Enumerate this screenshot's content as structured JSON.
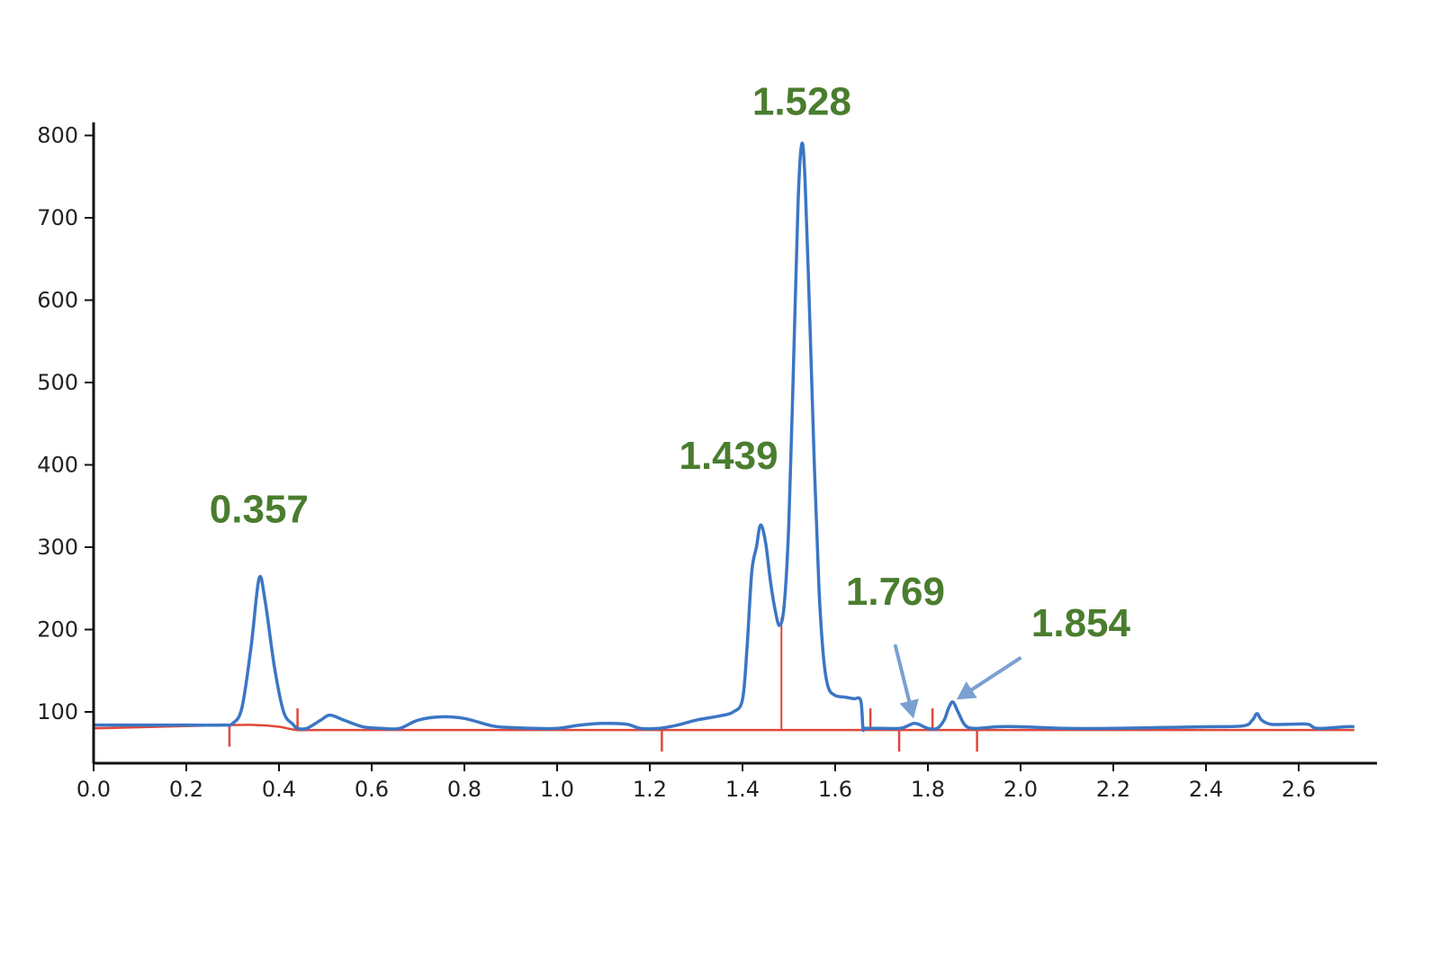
{
  "chart_data": {
    "type": "line",
    "title": "",
    "xlabel": "",
    "ylabel": "",
    "xlim": [
      0.0,
      2.72
    ],
    "ylim": [
      40,
      820
    ],
    "grid": false,
    "x_ticks": [
      "0.0",
      "0.2",
      "0.4",
      "0.6",
      "0.8",
      "1.0",
      "1.2",
      "1.4",
      "1.6",
      "1.8",
      "2.0",
      "2.2",
      "2.4",
      "2.6"
    ],
    "y_ticks": [
      "100",
      "200",
      "300",
      "400",
      "500",
      "600",
      "700",
      "800"
    ],
    "colors": {
      "signal": "#3b76c4",
      "baseline": "#e0473a",
      "labels": "#4a7d2e",
      "arrows": "#7a9fd1",
      "axis": "#111111"
    },
    "series": [
      {
        "role": "signal",
        "x": [
          0.0,
          0.1,
          0.2,
          0.28,
          0.3,
          0.32,
          0.34,
          0.357,
          0.37,
          0.39,
          0.41,
          0.43,
          0.44,
          0.46,
          0.49,
          0.51,
          0.54,
          0.58,
          0.62,
          0.66,
          0.7,
          0.75,
          0.8,
          0.86,
          0.9,
          0.95,
          1.0,
          1.05,
          1.1,
          1.15,
          1.18,
          1.22,
          1.26,
          1.3,
          1.35,
          1.38,
          1.4,
          1.41,
          1.42,
          1.43,
          1.439,
          1.45,
          1.46,
          1.47,
          1.48,
          1.49,
          1.5,
          1.51,
          1.52,
          1.528,
          1.535,
          1.545,
          1.555,
          1.565,
          1.575,
          1.585,
          1.6,
          1.62,
          1.64,
          1.655,
          1.66,
          1.665,
          1.7,
          1.74,
          1.76,
          1.769,
          1.78,
          1.8,
          1.82,
          1.835,
          1.845,
          1.854,
          1.865,
          1.88,
          1.9,
          1.95,
          2.0,
          2.1,
          2.2,
          2.3,
          2.4,
          2.48,
          2.5,
          2.51,
          2.52,
          2.54,
          2.58,
          2.62,
          2.64,
          2.7,
          2.72
        ],
        "y": [
          84,
          84,
          84,
          84,
          86,
          105,
          180,
          262,
          235,
          155,
          100,
          85,
          80,
          80,
          90,
          96,
          90,
          82,
          80,
          80,
          90,
          94,
          92,
          83,
          81,
          80,
          80,
          84,
          86,
          85,
          80,
          80,
          84,
          90,
          95,
          100,
          115,
          180,
          270,
          300,
          327,
          305,
          260,
          225,
          205,
          230,
          330,
          520,
          720,
          790,
          745,
          580,
          400,
          250,
          165,
          130,
          120,
          118,
          116,
          114,
          80,
          80,
          80,
          80,
          84,
          86,
          85,
          80,
          80,
          90,
          105,
          112,
          100,
          84,
          80,
          82,
          82,
          80,
          80,
          81,
          82,
          83,
          90,
          98,
          90,
          85,
          85,
          85,
          80,
          82,
          82
        ]
      },
      {
        "role": "baseline",
        "x": [
          0.0,
          0.29,
          0.35,
          0.4,
          0.44,
          0.5,
          1.0,
          1.5,
          2.0,
          2.5,
          2.72
        ],
        "y": [
          80,
          84,
          84,
          82,
          78,
          78,
          78,
          78,
          78,
          78,
          78
        ]
      }
    ],
    "integration_markers": {
      "down": [
        0.293,
        1.226,
        1.738,
        1.906
      ],
      "up": [
        0.44,
        1.676,
        1.81
      ],
      "split": [
        1.484
      ]
    },
    "peak_labels": [
      {
        "text": "0.357",
        "x": 0.357,
        "y": 330
      },
      {
        "text": "1.439",
        "x": 1.37,
        "y": 395
      },
      {
        "text": "1.528",
        "x": 1.528,
        "y": 825
      },
      {
        "text": "1.769",
        "x": 1.73,
        "y": 230
      },
      {
        "text": "1.854",
        "x": 2.13,
        "y": 192
      }
    ],
    "arrows": [
      {
        "from": [
          1.73,
          180
        ],
        "to": [
          1.769,
          92
        ]
      },
      {
        "from": [
          1.998,
          165
        ],
        "to": [
          1.862,
          115
        ]
      }
    ]
  }
}
